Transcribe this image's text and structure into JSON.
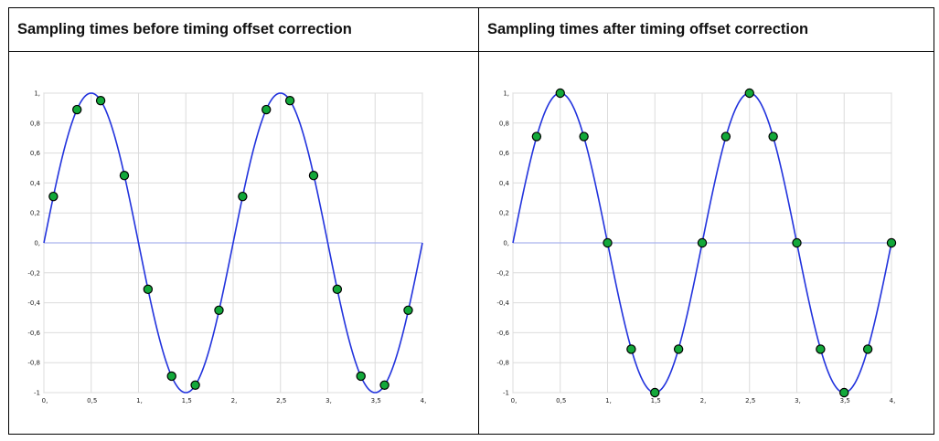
{
  "table": {
    "header_left": "Sampling times before timing offset correction",
    "header_right": "Sampling times after timing offset correction"
  },
  "colors": {
    "curve": "#2233dd",
    "zero_line": "#aab4ee",
    "grid": "#dcdcdc",
    "marker_fill": "#13a83a",
    "marker_edge": "#000000"
  },
  "chart_data": [
    {
      "type": "line",
      "title": "",
      "xlabel": "",
      "ylabel": "",
      "xlim": [
        0,
        4
      ],
      "ylim": [
        -1,
        1
      ],
      "grid": true,
      "x_ticks": [
        0,
        0.5,
        1,
        1.5,
        2,
        2.5,
        3,
        3.5,
        4
      ],
      "x_tick_labels": [
        "0,",
        "0,5",
        "1,",
        "1,5",
        "2,",
        "2,5",
        "3,",
        "3,5",
        "4,"
      ],
      "y_ticks": [
        1,
        0.8,
        0.6,
        0.4,
        0.2,
        0,
        -0.2,
        -0.4,
        -0.6,
        -0.8,
        -1
      ],
      "y_tick_labels": [
        "1,",
        "0,8",
        "0,6",
        "0,4",
        "0,2",
        "0,",
        "-0,2",
        "-0,4",
        "-0,6",
        "-0,8",
        "-1"
      ],
      "curve": "sin(pi*x)",
      "series": [
        {
          "x": [
            0.1,
            0.35,
            0.6,
            0.85,
            1.1,
            1.35,
            1.6,
            1.85,
            2.1,
            2.35,
            2.6,
            2.85,
            3.1,
            3.35,
            3.6,
            3.85
          ],
          "y": [
            0.31,
            0.89,
            0.95,
            0.45,
            -0.31,
            -0.89,
            -0.95,
            -0.45,
            0.31,
            0.89,
            0.95,
            0.45,
            -0.31,
            -0.89,
            -0.95,
            -0.45
          ]
        }
      ]
    },
    {
      "type": "line",
      "title": "",
      "xlabel": "",
      "ylabel": "",
      "xlim": [
        0,
        4
      ],
      "ylim": [
        -1,
        1
      ],
      "grid": true,
      "x_ticks": [
        0,
        0.5,
        1,
        1.5,
        2,
        2.5,
        3,
        3.5,
        4
      ],
      "x_tick_labels": [
        "0,",
        "0,5",
        "1,",
        "1,5",
        "2,",
        "2,5",
        "3,",
        "3,5",
        "4,"
      ],
      "y_ticks": [
        1,
        0.8,
        0.6,
        0.4,
        0.2,
        0,
        -0.2,
        -0.4,
        -0.6,
        -0.8,
        -1
      ],
      "y_tick_labels": [
        "1,",
        "0,8",
        "0,6",
        "0,4",
        "0,2",
        "0,",
        "-0,2",
        "-0,4",
        "-0,6",
        "-0,8",
        "-1"
      ],
      "curve": "sin(pi*x)",
      "series": [
        {
          "x": [
            0.25,
            0.5,
            0.75,
            1.0,
            1.25,
            1.5,
            1.75,
            2.0,
            2.25,
            2.5,
            2.75,
            3.0,
            3.25,
            3.5,
            3.75,
            4.0
          ],
          "y": [
            0.71,
            1.0,
            0.71,
            0.0,
            -0.71,
            -1.0,
            -0.71,
            0.0,
            0.71,
            1.0,
            0.71,
            0.0,
            -0.71,
            -1.0,
            -0.71,
            0.0
          ]
        }
      ]
    }
  ]
}
